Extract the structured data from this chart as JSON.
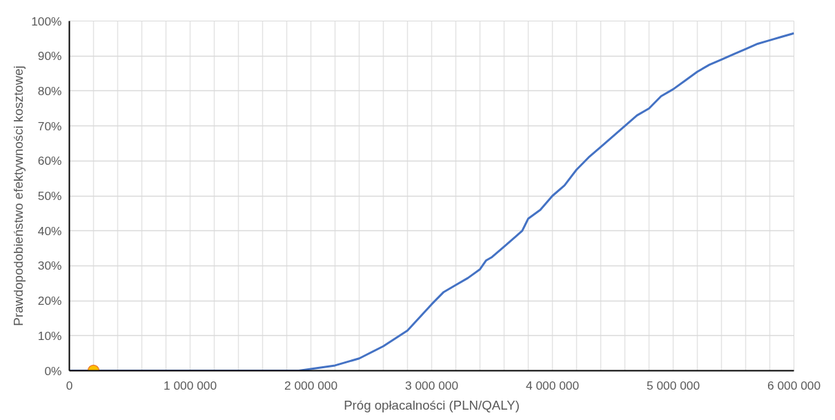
{
  "chart_data": {
    "type": "line",
    "xlabel": "Próg opłacalności (PLN/QALY)",
    "ylabel": "Prawdopodobieństwo efektywności kosztowej",
    "series": [
      {
        "color": "#4472c4",
        "x": [
          0,
          1900000,
          2000000,
          2200000,
          2400000,
          2600000,
          2800000,
          3000000,
          3100000,
          3200000,
          3300000,
          3400000,
          3450000,
          3500000,
          3600000,
          3700000,
          3750000,
          3800000,
          3900000,
          4000000,
          4100000,
          4200000,
          4300000,
          4400000,
          4500000,
          4600000,
          4700000,
          4800000,
          4900000,
          5000000,
          5100000,
          5200000,
          5300000,
          5400000,
          5500000,
          5600000,
          5700000,
          5800000,
          5900000,
          6000000
        ],
        "values": [
          0,
          0,
          0.5,
          1.5,
          3.5,
          7,
          11.5,
          19,
          22.5,
          24.5,
          26.5,
          29,
          31.5,
          32.5,
          35.5,
          38.5,
          40,
          43.5,
          46,
          50,
          53,
          57.5,
          61,
          64,
          67,
          70,
          73,
          75,
          78.5,
          80.5,
          83,
          85.5,
          87.5,
          89,
          90.5,
          92,
          93.5,
          94.5,
          95.5,
          96.5
        ]
      },
      {
        "type": "scatter",
        "marker": "circle",
        "color": "#ffc000",
        "x": [
          200000
        ],
        "values": [
          0
        ]
      }
    ],
    "xlim": [
      0,
      6000000
    ],
    "ylim": [
      0,
      100
    ],
    "xticks": [
      {
        "value": 0,
        "label": "0"
      },
      {
        "value": 200000,
        "label": null
      },
      {
        "value": 400000,
        "label": null
      },
      {
        "value": 600000,
        "label": null
      },
      {
        "value": 800000,
        "label": null
      },
      {
        "value": 1000000,
        "label": "1 000 000"
      },
      {
        "value": 1200000,
        "label": null
      },
      {
        "value": 1400000,
        "label": null
      },
      {
        "value": 1600000,
        "label": null
      },
      {
        "value": 1800000,
        "label": null
      },
      {
        "value": 2000000,
        "label": "2 000 000"
      },
      {
        "value": 2200000,
        "label": null
      },
      {
        "value": 2400000,
        "label": null
      },
      {
        "value": 2600000,
        "label": null
      },
      {
        "value": 2800000,
        "label": null
      },
      {
        "value": 3000000,
        "label": "3 000 000"
      },
      {
        "value": 3200000,
        "label": null
      },
      {
        "value": 3400000,
        "label": null
      },
      {
        "value": 3600000,
        "label": null
      },
      {
        "value": 3800000,
        "label": null
      },
      {
        "value": 4000000,
        "label": "4 000 000"
      },
      {
        "value": 4200000,
        "label": null
      },
      {
        "value": 4400000,
        "label": null
      },
      {
        "value": 4600000,
        "label": null
      },
      {
        "value": 4800000,
        "label": null
      },
      {
        "value": 5000000,
        "label": "5 000 000"
      },
      {
        "value": 5200000,
        "label": null
      },
      {
        "value": 5400000,
        "label": null
      },
      {
        "value": 5600000,
        "label": null
      },
      {
        "value": 5800000,
        "label": null
      },
      {
        "value": 6000000,
        "label": "6 000 000"
      }
    ],
    "yticks": [
      {
        "value": 0,
        "label": "0%"
      },
      {
        "value": 10,
        "label": "10%"
      },
      {
        "value": 20,
        "label": "20%"
      },
      {
        "value": 30,
        "label": "30%"
      },
      {
        "value": 40,
        "label": "40%"
      },
      {
        "value": 50,
        "label": "50%"
      },
      {
        "value": 60,
        "label": "60%"
      },
      {
        "value": 70,
        "label": "70%"
      },
      {
        "value": 80,
        "label": "80%"
      },
      {
        "value": 90,
        "label": "90%"
      },
      {
        "value": 100,
        "label": "100%"
      }
    ],
    "grid": true
  }
}
